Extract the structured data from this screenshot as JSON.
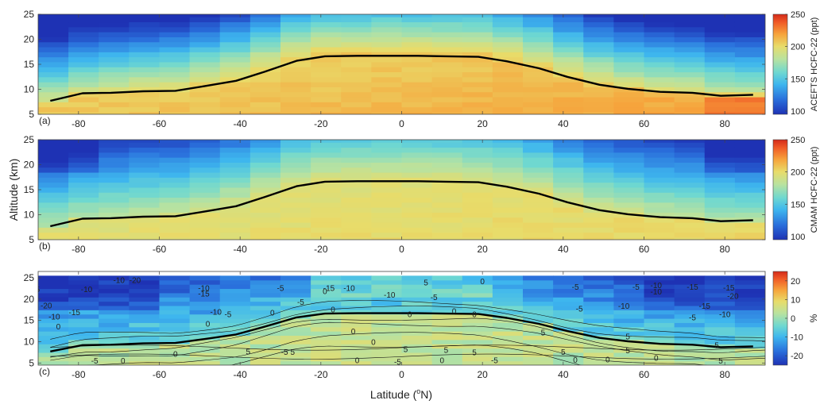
{
  "figure": {
    "xlabel": "Latitude (°N)",
    "xlabel_main": "Latitude (",
    "xlabel_sup": "o",
    "xlabel_end": "N)",
    "ylabel": "Altitude (km)"
  },
  "chart_data": [
    {
      "type": "heatmap",
      "panel_label": "(a)",
      "colorbar_label": "ACEFTS HCFC-22 (ppt)",
      "xlim": [
        -90,
        90
      ],
      "ylim": [
        5,
        25
      ],
      "xticks": [
        -80,
        -60,
        -40,
        -20,
        0,
        20,
        40,
        60,
        80
      ],
      "yticks": [
        5,
        10,
        15,
        20,
        25
      ],
      "clim": [
        95,
        250
      ],
      "cticks": [
        100,
        150,
        200,
        250
      ],
      "colormap": "jet",
      "tropopause": {
        "lat": [
          -87,
          -79,
          -72,
          -64,
          -56,
          -49,
          -41,
          -34,
          -26,
          -19,
          -11,
          -4,
          4,
          11,
          19,
          26,
          34,
          41,
          49,
          56,
          64,
          72,
          79,
          87
        ],
        "alt": [
          7.7,
          9.2,
          9.3,
          9.6,
          9.7,
          10.6,
          11.7,
          13.5,
          15.7,
          16.6,
          16.7,
          16.7,
          16.7,
          16.6,
          16.5,
          15.6,
          14.2,
          12.5,
          10.9,
          10.1,
          9.5,
          9.3,
          8.7,
          8.9
        ]
      }
    },
    {
      "type": "heatmap",
      "panel_label": "(b)",
      "colorbar_label": "CMAM HCFC-22 (ppt)",
      "xlim": [
        -90,
        90
      ],
      "ylim": [
        5,
        25
      ],
      "xticks": [
        -80,
        -60,
        -40,
        -20,
        0,
        20,
        40,
        60,
        80
      ],
      "yticks": [
        5,
        10,
        15,
        20,
        25
      ],
      "clim": [
        95,
        250
      ],
      "cticks": [
        100,
        150,
        200,
        250
      ],
      "colormap": "jet",
      "tropopause": {
        "lat": [
          -87,
          -79,
          -72,
          -64,
          -56,
          -49,
          -41,
          -34,
          -26,
          -19,
          -11,
          -4,
          4,
          11,
          19,
          26,
          34,
          41,
          49,
          56,
          64,
          72,
          79,
          87
        ],
        "alt": [
          7.7,
          9.2,
          9.3,
          9.6,
          9.7,
          10.6,
          11.7,
          13.5,
          15.7,
          16.6,
          16.7,
          16.7,
          16.7,
          16.6,
          16.5,
          15.6,
          14.2,
          12.5,
          10.9,
          10.1,
          9.5,
          9.3,
          8.7,
          8.9
        ]
      }
    },
    {
      "type": "heatmap",
      "panel_label": "(c)",
      "colorbar_label": "%",
      "xlim": [
        -90,
        90
      ],
      "ylim": [
        4.5,
        26.5
      ],
      "xticks": [
        -80,
        -60,
        -40,
        -20,
        0,
        20,
        40,
        60,
        80
      ],
      "yticks": [
        5,
        10,
        15,
        20,
        25
      ],
      "clim": [
        -25,
        25
      ],
      "cticks": [
        -20,
        -10,
        0,
        10,
        20
      ],
      "colormap": "jet",
      "tropopause": {
        "lat": [
          -87,
          -79,
          -72,
          -64,
          -56,
          -49,
          -41,
          -34,
          -26,
          -19,
          -11,
          -4,
          4,
          11,
          19,
          26,
          34,
          41,
          49,
          56,
          64,
          72,
          79,
          87
        ],
        "alt": [
          7.7,
          9.2,
          9.3,
          9.6,
          9.7,
          10.6,
          11.7,
          13.5,
          15.7,
          16.6,
          16.7,
          16.7,
          16.7,
          16.6,
          16.5,
          15.6,
          14.2,
          12.5,
          10.9,
          10.1,
          9.5,
          9.3,
          8.7,
          8.9
        ]
      },
      "contour_labels": [
        {
          "text": "-10",
          "lat": -70,
          "alt": 24.5
        },
        {
          "text": "-20",
          "lat": -66,
          "alt": 24.5
        },
        {
          "text": "-10",
          "lat": -49,
          "alt": 22.7
        },
        {
          "text": "-5",
          "lat": -30,
          "alt": 22.7
        },
        {
          "text": "-15",
          "lat": -18,
          "alt": 22.7
        },
        {
          "text": "-10",
          "lat": -13,
          "alt": 22.7
        },
        {
          "text": "5",
          "lat": 6,
          "alt": 24.0
        },
        {
          "text": "0",
          "lat": 20,
          "alt": 24.3
        },
        {
          "text": "-5",
          "lat": 43,
          "alt": 23.0
        },
        {
          "text": "-5",
          "lat": 58,
          "alt": 23.0
        },
        {
          "text": "-10",
          "lat": 63,
          "alt": 23.3
        },
        {
          "text": "-15",
          "lat": 72,
          "alt": 23.0
        },
        {
          "text": "-15",
          "lat": 81,
          "alt": 22.8
        },
        {
          "text": "-15",
          "lat": -91,
          "alt": 22.4
        },
        {
          "text": "-10",
          "lat": -78,
          "alt": 22.4
        },
        {
          "text": "-15",
          "lat": -49,
          "alt": 21.4
        },
        {
          "text": "0",
          "lat": -19,
          "alt": 21.9
        },
        {
          "text": "-10",
          "lat": -3,
          "alt": 21.1
        },
        {
          "text": "-10",
          "lat": 63,
          "alt": 21.8
        },
        {
          "text": "-20",
          "lat": 82,
          "alt": 20.8
        },
        {
          "text": "-20",
          "lat": -88,
          "alt": 18.6
        },
        {
          "text": "-5",
          "lat": -25,
          "alt": 19.4
        },
        {
          "text": "-5",
          "lat": 8,
          "alt": 20.5
        },
        {
          "text": "-10",
          "lat": 55,
          "alt": 18.5
        },
        {
          "text": "-15",
          "lat": 75,
          "alt": 18.5
        },
        {
          "text": "-15",
          "lat": -81,
          "alt": 17.0
        },
        {
          "text": "-10",
          "lat": -46,
          "alt": 17.1
        },
        {
          "text": "-5",
          "lat": -43,
          "alt": 16.5
        },
        {
          "text": "0",
          "lat": -32,
          "alt": 16.9
        },
        {
          "text": "0",
          "lat": -17,
          "alt": 17.6
        },
        {
          "text": "0",
          "lat": 13,
          "alt": 17.3
        },
        {
          "text": "-5",
          "lat": 44,
          "alt": 17.8
        },
        {
          "text": "-10",
          "lat": -86,
          "alt": 16.0
        },
        {
          "text": "0",
          "lat": -85,
          "alt": 13.6
        },
        {
          "text": "0",
          "lat": -48,
          "alt": 14.3
        },
        {
          "text": "-5",
          "lat": 72,
          "alt": 15.8
        },
        {
          "text": "-10",
          "lat": 80,
          "alt": 16.5
        },
        {
          "text": "0",
          "lat": 2,
          "alt": 16.5
        },
        {
          "text": "0",
          "lat": 18,
          "alt": 16.5
        },
        {
          "text": "0",
          "lat": -12,
          "alt": 12.5
        },
        {
          "text": "0",
          "lat": -7,
          "alt": 10.0
        },
        {
          "text": "5",
          "lat": 35,
          "alt": 12.2
        },
        {
          "text": "5",
          "lat": 56,
          "alt": 11.3
        },
        {
          "text": "5",
          "lat": -38,
          "alt": 7.8
        },
        {
          "text": "-5",
          "lat": -29,
          "alt": 7.7
        },
        {
          "text": "5",
          "lat": -27,
          "alt": 7.7
        },
        {
          "text": "5",
          "lat": 1,
          "alt": 8.3
        },
        {
          "text": "5",
          "lat": 11,
          "alt": 8.1
        },
        {
          "text": "5",
          "lat": 18,
          "alt": 7.6
        },
        {
          "text": "5",
          "lat": 40,
          "alt": 7.7
        },
        {
          "text": "5",
          "lat": 56,
          "alt": 8.0
        },
        {
          "text": "5",
          "lat": 78,
          "alt": 9.3
        },
        {
          "text": "0",
          "lat": -56,
          "alt": 7.2
        },
        {
          "text": "0",
          "lat": -11,
          "alt": 5.7
        },
        {
          "text": "0",
          "lat": 10,
          "alt": 5.7
        },
        {
          "text": "0",
          "lat": 43,
          "alt": 5.8
        },
        {
          "text": "0",
          "lat": 51,
          "alt": 5.9
        },
        {
          "text": "-5",
          "lat": 23,
          "alt": 5.7
        },
        {
          "text": "-5",
          "lat": -1,
          "alt": 5.3
        },
        {
          "text": "-5",
          "lat": -76,
          "alt": 5.6
        },
        {
          "text": "0",
          "lat": -69,
          "alt": 5.6
        },
        {
          "text": "5",
          "lat": 79,
          "alt": 5.6
        },
        {
          "text": "0",
          "lat": 63,
          "alt": 6.3
        }
      ]
    }
  ]
}
